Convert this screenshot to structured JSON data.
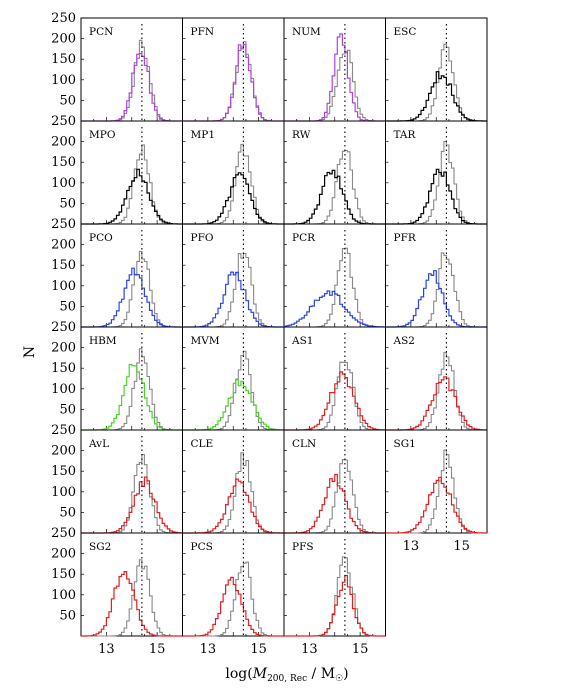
{
  "figure": {
    "ylabel": "N",
    "xlabel_prefix": "log(",
    "xlabel_var": "M",
    "xlabel_sub": "200, Rec",
    "xlabel_sep": " / M",
    "xlabel_sun": "☉",
    "xlabel_suffix": ")"
  },
  "chart_data": {
    "type": "histogram-grid",
    "ylabel": "N",
    "xlabel": "log(M200,Rec / M☉)",
    "y_ticks": [
      50,
      100,
      150,
      200,
      250
    ],
    "ylim": [
      0,
      250
    ],
    "x_ticks": [
      13,
      15
    ],
    "xlim": [
      12.0,
      16.0
    ],
    "reference_line_x": 14.4,
    "colors": {
      "purple": "#b040e0",
      "black": "#000000",
      "blue": "#2a44e8",
      "green": "#4cd12b",
      "red": "#e02020",
      "reference": "#888888"
    },
    "panels": [
      {
        "label": "PCN",
        "color": "purple",
        "center": 14.35,
        "sigma": 0.3,
        "peak": 180
      },
      {
        "label": "PFN",
        "color": "purple",
        "center": 14.4,
        "sigma": 0.3,
        "peak": 190
      },
      {
        "label": "NUM",
        "color": "purple",
        "center": 14.25,
        "sigma": 0.28,
        "peak": 205
      },
      {
        "label": "ESC",
        "color": "black",
        "center": 14.2,
        "sigma": 0.42,
        "peak": 115
      },
      {
        "label": "MPO",
        "color": "black",
        "center": 14.25,
        "sigma": 0.42,
        "peak": 120
      },
      {
        "label": "MP1",
        "color": "black",
        "center": 14.25,
        "sigma": 0.4,
        "peak": 120
      },
      {
        "label": "RW",
        "color": "black",
        "center": 13.9,
        "sigma": 0.4,
        "peak": 130
      },
      {
        "label": "TAR",
        "color": "black",
        "center": 14.15,
        "sigma": 0.38,
        "peak": 135
      },
      {
        "label": "PCO",
        "color": "blue",
        "center": 14.1,
        "sigma": 0.42,
        "peak": 130
      },
      {
        "label": "PFO",
        "color": "blue",
        "center": 14.05,
        "sigma": 0.42,
        "peak": 130
      },
      {
        "label": "PCR",
        "color": "blue",
        "center": 13.75,
        "sigma": 0.62,
        "peak": 85
      },
      {
        "label": "PFR",
        "color": "blue",
        "center": 13.85,
        "sigma": 0.4,
        "peak": 130
      },
      {
        "label": "HBM",
        "color": "green",
        "center": 14.1,
        "sigma": 0.4,
        "peak": 155
      },
      {
        "label": "MVM",
        "color": "green",
        "center": 14.3,
        "sigma": 0.45,
        "peak": 120
      },
      {
        "label": "AS1",
        "color": "red",
        "center": 14.3,
        "sigma": 0.45,
        "peak": 135
      },
      {
        "label": "AS2",
        "color": "red",
        "center": 14.3,
        "sigma": 0.45,
        "peak": 125
      },
      {
        "label": "AvL",
        "color": "red",
        "center": 14.5,
        "sigma": 0.42,
        "peak": 125
      },
      {
        "label": "CLE",
        "color": "red",
        "center": 14.2,
        "sigma": 0.42,
        "peak": 120
      },
      {
        "label": "CLN",
        "color": "red",
        "center": 14.0,
        "sigma": 0.42,
        "peak": 130
      },
      {
        "label": "SG1",
        "color": "red",
        "center": 14.15,
        "sigma": 0.45,
        "peak": 135
      },
      {
        "label": "SG2",
        "color": "red",
        "center": 13.7,
        "sigma": 0.4,
        "peak": 155
      },
      {
        "label": "PCS",
        "color": "red",
        "center": 13.95,
        "sigma": 0.38,
        "peak": 140
      },
      {
        "label": "PFS",
        "color": "red",
        "center": 14.4,
        "sigma": 0.32,
        "peak": 135
      }
    ],
    "reference": {
      "center": 14.4,
      "sigma": 0.3,
      "peak": 185,
      "color": "reference"
    }
  }
}
